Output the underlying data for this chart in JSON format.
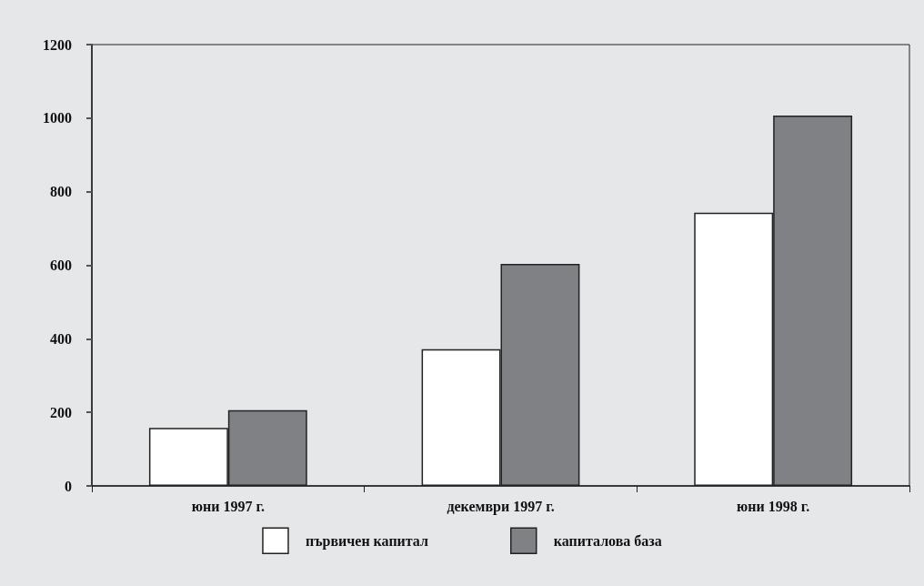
{
  "chart_data": {
    "type": "bar",
    "categories": [
      "юни 1997 г.",
      "декември 1997 г.",
      "юни 1998 г."
    ],
    "series": [
      {
        "name": "първичен капитал",
        "color": "#ffffff",
        "values": [
          158,
          372,
          743
        ]
      },
      {
        "name": "капиталова база",
        "color": "#808184",
        "values": [
          206,
          604,
          1007
        ]
      }
    ],
    "ylim": [
      0,
      1200
    ],
    "yticks": [
      0,
      200,
      400,
      600,
      800,
      1000,
      1200
    ],
    "grid": false,
    "legend": "bottom"
  }
}
